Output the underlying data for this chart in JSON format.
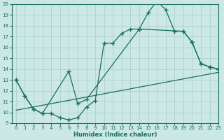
{
  "xlabel": "Humidex (Indice chaleur)",
  "bg_color": "#cce8e4",
  "grid_color": "#aad4cc",
  "line_color": "#1a6e60",
  "xlim": [
    -0.5,
    23
  ],
  "ylim": [
    9,
    20
  ],
  "xticks": [
    0,
    1,
    2,
    3,
    4,
    5,
    6,
    7,
    8,
    9,
    10,
    11,
    12,
    13,
    14,
    15,
    16,
    17,
    18,
    19,
    20,
    21,
    22,
    23
  ],
  "yticks": [
    9,
    10,
    11,
    12,
    13,
    14,
    15,
    16,
    17,
    18,
    19,
    20
  ],
  "line1_x": [
    0,
    1,
    2,
    3,
    4,
    5,
    6,
    7,
    8,
    9,
    10,
    11,
    12,
    13,
    14,
    15,
    16,
    17,
    18,
    19,
    20,
    21,
    22,
    23
  ],
  "line1_y": [
    13,
    11.5,
    10.3,
    9.9,
    9.9,
    9.5,
    9.3,
    9.5,
    10.5,
    11.1,
    16.4,
    16.4,
    17.3,
    17.7,
    17.7,
    19.2,
    20.3,
    19.5,
    17.5,
    17.5,
    16.5,
    14.5,
    14.2,
    14.0
  ],
  "line2_x": [
    0,
    1,
    2,
    3,
    6,
    7,
    8,
    14,
    19,
    20,
    21,
    22,
    23
  ],
  "line2_y": [
    13,
    11.5,
    10.3,
    9.9,
    13.8,
    10.8,
    11.2,
    17.7,
    17.5,
    16.5,
    14.5,
    14.2,
    14.0
  ],
  "line3_x": [
    0,
    23
  ],
  "line3_y": [
    10.2,
    13.7
  ]
}
